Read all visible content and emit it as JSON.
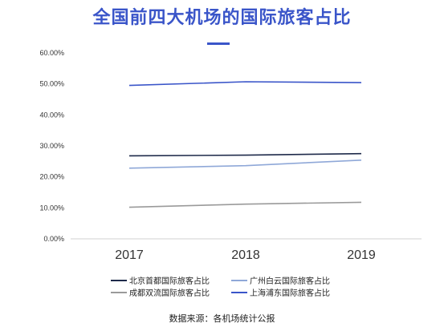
{
  "title": "全国前四大机场的国际旅客占比",
  "source": "数据来源：各机场统计公报",
  "colors": {
    "title": "#3a55c9"
  },
  "chart_data": {
    "type": "line",
    "title": "全国前四大机场的国际旅客占比",
    "x": [
      "2017",
      "2018",
      "2019"
    ],
    "ylim": [
      0,
      0.6
    ],
    "yticks": [
      "0.00%",
      "10.00%",
      "20.00%",
      "30.00%",
      "40.00%",
      "50.00%",
      "60.00%"
    ],
    "grid": false,
    "legend_position": "bottom",
    "series": [
      {
        "name": "北京首都国际旅客占比",
        "values": [
          0.268,
          0.27,
          0.275
        ],
        "color": "#1e2a4a"
      },
      {
        "name": "广州白云国际旅客占比",
        "values": [
          0.228,
          0.236,
          0.254
        ],
        "color": "#8fa8d8"
      },
      {
        "name": "成都双流国际旅客占比",
        "values": [
          0.102,
          0.112,
          0.118
        ],
        "color": "#9a9a9a"
      },
      {
        "name": "上海浦东国际旅客占比",
        "values": [
          0.495,
          0.507,
          0.504
        ],
        "color": "#3a55c9"
      }
    ]
  }
}
